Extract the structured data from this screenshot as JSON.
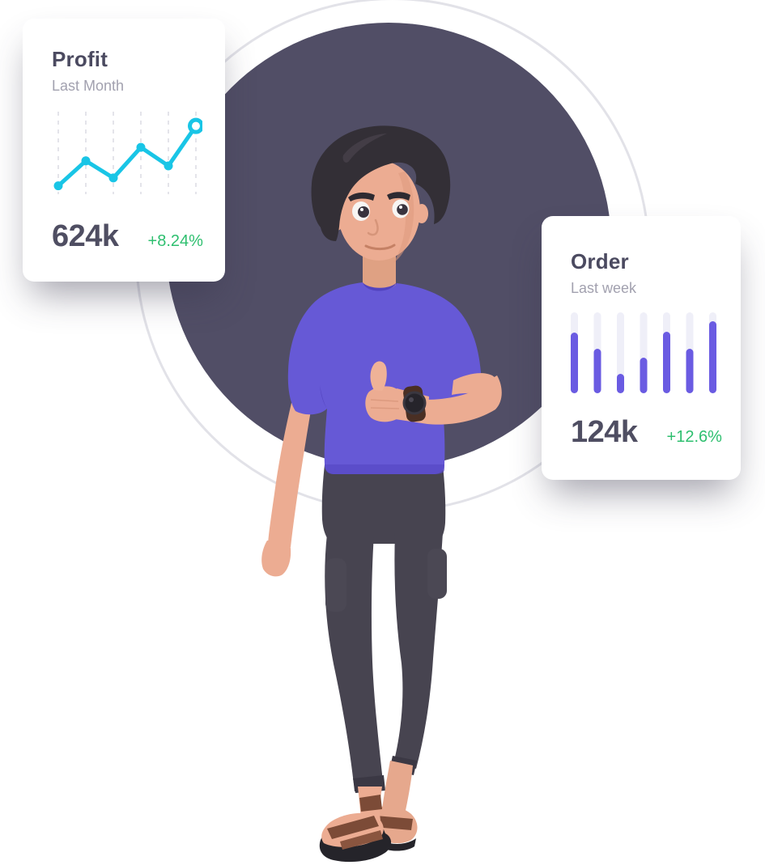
{
  "theme": {
    "page_bg": "#FFFFFF",
    "circle_fill": "#514E66",
    "ring_stroke": "#E2E2E8",
    "card_bg": "#FFFFFF",
    "title_color": "#4B4A60",
    "subtitle_color": "#A2A1AF",
    "value_color": "#4F4E62",
    "positive_color": "#2EBF6F",
    "grid_color": "#DEDEE4",
    "line_color": "#19C5E6",
    "bar_color": "#6A5BE2",
    "bar_track_color": "#EFEFF8"
  },
  "cards": {
    "profit": {
      "title": "Profit",
      "subtitle": "Last Month",
      "value": "624k",
      "change": "+8.24%"
    },
    "order": {
      "title": "Order",
      "subtitle": "Last week",
      "value": "124k",
      "change": "+12.6%"
    }
  },
  "chart_data": [
    {
      "type": "line",
      "title": "Profit",
      "subtitle": "Last Month",
      "x": [
        1,
        2,
        3,
        4,
        5,
        6
      ],
      "values": [
        0.05,
        0.4,
        0.16,
        0.59,
        0.33,
        0.89
      ],
      "value_scale": "relative plot height 0-1 (no numeric axis shown)",
      "summary_value": "624k",
      "change_label": "+8.24%",
      "grid": "vertical-dashed",
      "legend": "none",
      "line_color": "#19C5E6",
      "last_point": "open-ring"
    },
    {
      "type": "bar",
      "title": "Order",
      "subtitle": "Last week",
      "categories": [
        "1",
        "2",
        "3",
        "4",
        "5",
        "6",
        "7"
      ],
      "values": [
        0.75,
        0.55,
        0.24,
        0.44,
        0.76,
        0.55,
        0.89
      ],
      "value_scale": "relative track height 0-1 (no numeric axis shown)",
      "summary_value": "124k",
      "change_label": "+12.6%",
      "grid": "none",
      "legend": "none",
      "bar_color": "#6A5BE2",
      "track_color": "#EFEFF8"
    }
  ],
  "illustration": {
    "subject": "3D man standing with thumbs-up, wearing wristwatch",
    "shirt_color": "#6659D6",
    "pants_color": "#474450",
    "skin_color": "#ECAC92",
    "hair_color": "#332F36",
    "sandal_color": "#7C4B37",
    "sole_color": "#25242A",
    "watch_color": "#26242B"
  }
}
